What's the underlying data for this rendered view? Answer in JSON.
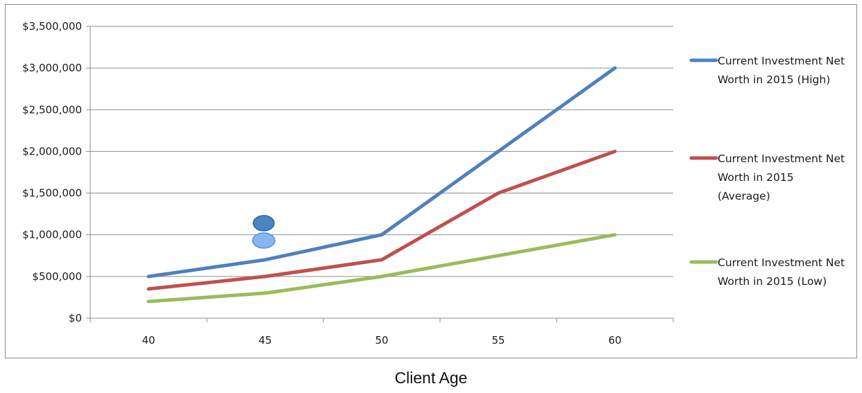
{
  "chart_data": {
    "type": "line",
    "title": "",
    "xlabel": "Client Age",
    "ylabel": "",
    "categories": [
      "40",
      "45",
      "50",
      "55",
      "60"
    ],
    "y_ticks": [
      "$0",
      "$500,000",
      "$1,000,000",
      "$1,500,000",
      "$2,000,000",
      "$2,500,000",
      "$3,000,000",
      "$3,500,000"
    ],
    "ylim": [
      0,
      3500000
    ],
    "grid": true,
    "legend_position": "right",
    "series": [
      {
        "name": "Current Investment Net Worth in 2015 (High)",
        "legend_lines": [
          "Current Investment Net",
          "Worth in 2015 (High)"
        ],
        "color": "#4f81bd",
        "values": [
          500000,
          700000,
          1000000,
          2000000,
          3000000
        ]
      },
      {
        "name": "Current Investment Net Worth in 2015 (Average)",
        "legend_lines": [
          "Current Investment Net",
          "Worth in 2015",
          "(Average)"
        ],
        "color": "#c0504d",
        "values": [
          350000,
          500000,
          700000,
          1500000,
          2000000
        ]
      },
      {
        "name": "Current Investment Net Worth in 2015 (Low)",
        "legend_lines": [
          "Current Investment Net",
          "Worth in 2015 (Low)"
        ],
        "color": "#9bbb59",
        "values": [
          200000,
          300000,
          500000,
          750000,
          1000000
        ]
      }
    ],
    "marker_icon": "client-marker-icon",
    "marker_colors": {
      "top": "#4a86c5",
      "bottom": "#86b6f0"
    }
  }
}
